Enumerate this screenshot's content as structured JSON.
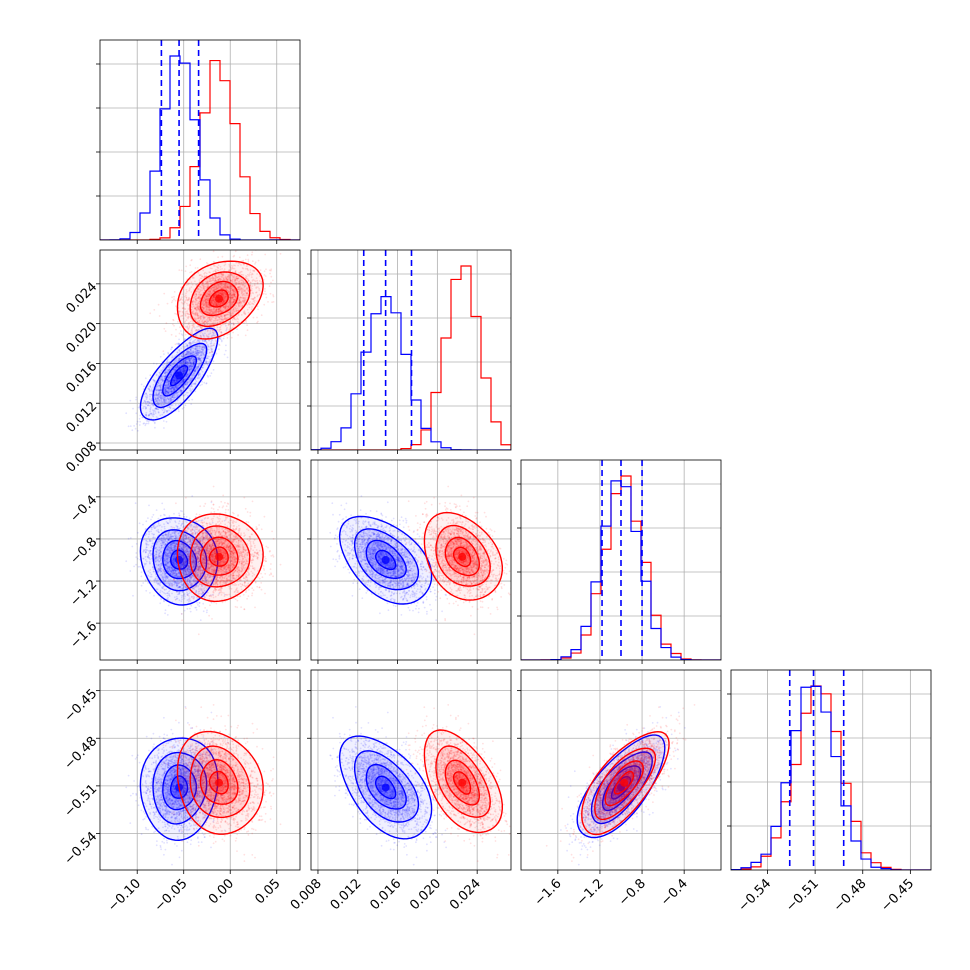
{
  "chart_data": {
    "type": "corner",
    "colors": {
      "blue": "#0000ff",
      "red": "#ff0000"
    },
    "parameters": [
      {
        "range": [
          -0.14,
          0.075
        ],
        "ticks": [
          {
            "v": -0.1,
            "label": "−0.10"
          },
          {
            "v": -0.05,
            "label": "−0.05"
          },
          {
            "v": 0.0,
            "label": "0.00"
          },
          {
            "v": 0.05,
            "label": "0.05"
          }
        ]
      },
      {
        "range": [
          0.0073,
          0.0274
        ],
        "ticks": [
          {
            "v": 0.008,
            "label": "0.008"
          },
          {
            "v": 0.012,
            "label": "0.012"
          },
          {
            "v": 0.016,
            "label": "0.016"
          },
          {
            "v": 0.02,
            "label": "0.020"
          },
          {
            "v": 0.024,
            "label": "0.024"
          }
        ]
      },
      {
        "range": [
          -1.95,
          -0.05
        ],
        "ticks": [
          {
            "v": -1.6,
            "label": "−1.6"
          },
          {
            "v": -1.2,
            "label": "−1.2"
          },
          {
            "v": -0.8,
            "label": "−0.8"
          },
          {
            "v": -0.4,
            "label": "−0.4"
          }
        ]
      },
      {
        "range": [
          -0.563,
          -0.437
        ],
        "ticks": [
          {
            "v": -0.54,
            "label": "−0.54"
          },
          {
            "v": -0.51,
            "label": "−0.51"
          },
          {
            "v": -0.48,
            "label": "−0.48"
          },
          {
            "v": -0.45,
            "label": "−0.45"
          }
        ]
      }
    ],
    "series": [
      {
        "color": "blue",
        "means": [
          -0.055,
          0.0148,
          -1.0,
          -0.511
        ],
        "sigmas": [
          0.018,
          0.002,
          0.18,
          0.014
        ],
        "correlations": {
          "0-1": 0.75,
          "0-2": -0.1,
          "0-3": 0.05,
          "1-2": -0.45,
          "1-3": -0.5,
          "2-3": 0.7
        },
        "quantile_lines": [
          [
            -0.074,
            -0.055,
            -0.034
          ],
          [
            0.0126,
            0.0148,
            0.0174
          ],
          [
            -1.18,
            -1.0,
            -0.8
          ],
          [
            -0.526,
            -0.511,
            -0.492
          ]
        ]
      },
      {
        "color": "red",
        "means": [
          -0.012,
          0.0225,
          -0.97,
          -0.508
        ],
        "sigmas": [
          0.02,
          0.0017,
          0.18,
          0.014
        ],
        "correlations": {
          "0-1": 0.3,
          "0-2": 0.0,
          "0-3": -0.15,
          "1-2": -0.3,
          "1-3": -0.5,
          "2-3": 0.7
        }
      }
    ]
  }
}
